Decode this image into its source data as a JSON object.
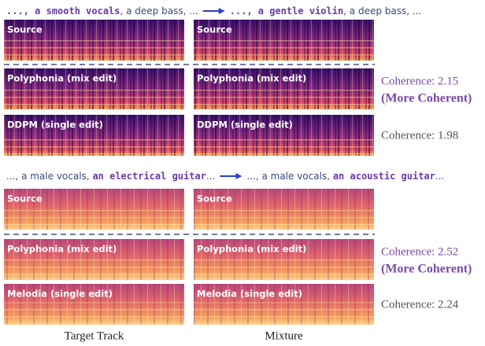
{
  "groups": [
    {
      "prompt_from": [
        "..., a smooth vocals",
        ", a deep bass, ..."
      ],
      "prompt_to": [
        "..., a gentle violin",
        ", a deep bass, ..."
      ],
      "rows": [
        {
          "label": "Source"
        },
        {
          "label": "Polyphonia (mix edit)",
          "coherence": "Coherence: 2.15",
          "note": "(More Coherent)"
        },
        {
          "label": "DDPM (single edit)",
          "coherence": "Coherence: 1.98"
        }
      ]
    },
    {
      "prompt_from": [
        "..., a male vocals, ",
        "an electrical guitar",
        "..."
      ],
      "prompt_to": [
        "..., a male vocals, ",
        "an acoustic guitar",
        "..."
      ],
      "rows": [
        {
          "label": "Source"
        },
        {
          "label": "Polyphonia (mix edit)",
          "coherence": "Coherence: 2.52",
          "note": "(More Coherent)"
        },
        {
          "label": "Melodia (single edit)",
          "coherence": "Coherence: 2.24"
        }
      ]
    }
  ],
  "columns": [
    "Target Track",
    "Mixture"
  ]
}
